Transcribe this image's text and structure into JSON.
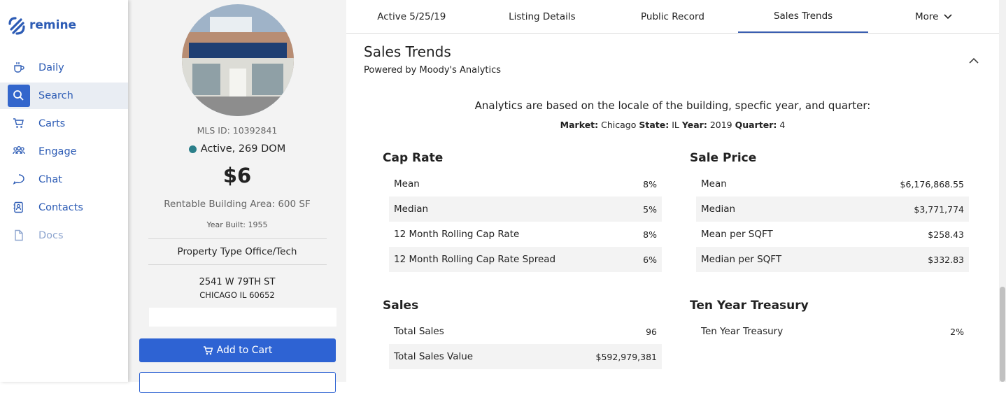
{
  "sidebar": {
    "brand": "remine",
    "nav": [
      "Daily",
      "Search",
      "Carts",
      "Engage",
      "Chat",
      "Contacts",
      "Docs"
    ]
  },
  "listing": {
    "mls_id": "MLS ID: 10392841",
    "status": "Active, 269 DOM",
    "price": "$6",
    "area": "Rentable Building Area: 600 SF",
    "year_built": "Year Built: 1955",
    "property_type": "Property Type Office/Tech",
    "address_line1": "2541 W 79TH ST",
    "address_line2": "CHICAGO IL 60652",
    "add_to_cart": "Add to Cart"
  },
  "tabs": [
    "Active 5/25/19",
    "Listing Details",
    "Public Record",
    "Sales Trends",
    "More"
  ],
  "section": {
    "title": "Sales Trends",
    "subtitle": "Powered by Moody's Analytics",
    "intro": "Analytics are based on the locale of the building, specfic year, and quarter:",
    "filters": [
      {
        "label": "Market:",
        "value": "Chicago"
      },
      {
        "label": "State:",
        "value": "IL"
      },
      {
        "label": "Year:",
        "value": "2019"
      },
      {
        "label": "Quarter:",
        "value": "4"
      }
    ]
  },
  "tables": [
    {
      "title": "Cap Rate",
      "rows": [
        [
          "Mean",
          "8%"
        ],
        [
          "Median",
          "5%"
        ],
        [
          "12 Month Rolling Cap Rate",
          "8%"
        ],
        [
          "12 Month Rolling Cap Rate Spread",
          "6%"
        ]
      ]
    },
    {
      "title": "Sale Price",
      "rows": [
        [
          "Mean",
          "$6,176,868.55"
        ],
        [
          "Median",
          "$3,771,774"
        ],
        [
          "Mean per SQFT",
          "$258.43"
        ],
        [
          "Median per SQFT",
          "$332.83"
        ]
      ]
    },
    {
      "title": "Sales",
      "rows": [
        [
          "Total Sales",
          "96"
        ],
        [
          "Total Sales Value",
          "$592,979,381"
        ]
      ]
    },
    {
      "title": "Ten Year Treasury",
      "rows": [
        [
          "Ten Year Treasury",
          "2%"
        ]
      ]
    }
  ]
}
